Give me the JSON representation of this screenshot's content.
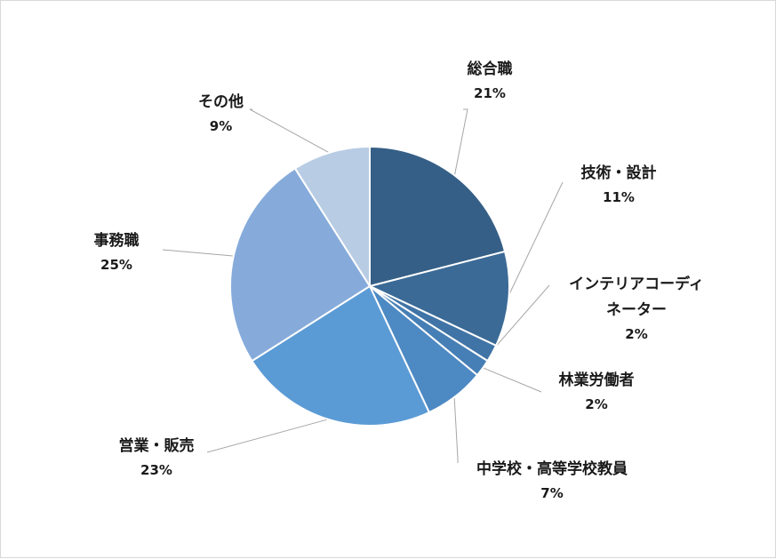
{
  "chart_data": {
    "type": "pie",
    "title": "",
    "start_angle_deg": 0,
    "direction": "clockwise",
    "slices": [
      {
        "label": "総合職",
        "value": 21,
        "value_label": "21%",
        "color": "#355f86"
      },
      {
        "label": "技術・設計",
        "value": 11,
        "value_label": "11%",
        "color": "#3b6a96"
      },
      {
        "label": "インテリアコーディネーター",
        "label_lines": [
          "インテリアコーディ",
          "ネーター"
        ],
        "value": 2,
        "value_label": "2%",
        "color": "#4174a6"
      },
      {
        "label": "林業労働者",
        "value": 2,
        "value_label": "2%",
        "color": "#467fb5"
      },
      {
        "label": "中学校・高等学校教員",
        "value": 7,
        "value_label": "7%",
        "color": "#4d89c3"
      },
      {
        "label": "営業・販売",
        "value": 23,
        "value_label": "23%",
        "color": "#5b9bd5"
      },
      {
        "label": "事務職",
        "value": 25,
        "value_label": "25%",
        "color": "#86abdb"
      },
      {
        "label": "その他",
        "value": 9,
        "value_label": "9%",
        "color": "#b8cce4"
      }
    ]
  }
}
